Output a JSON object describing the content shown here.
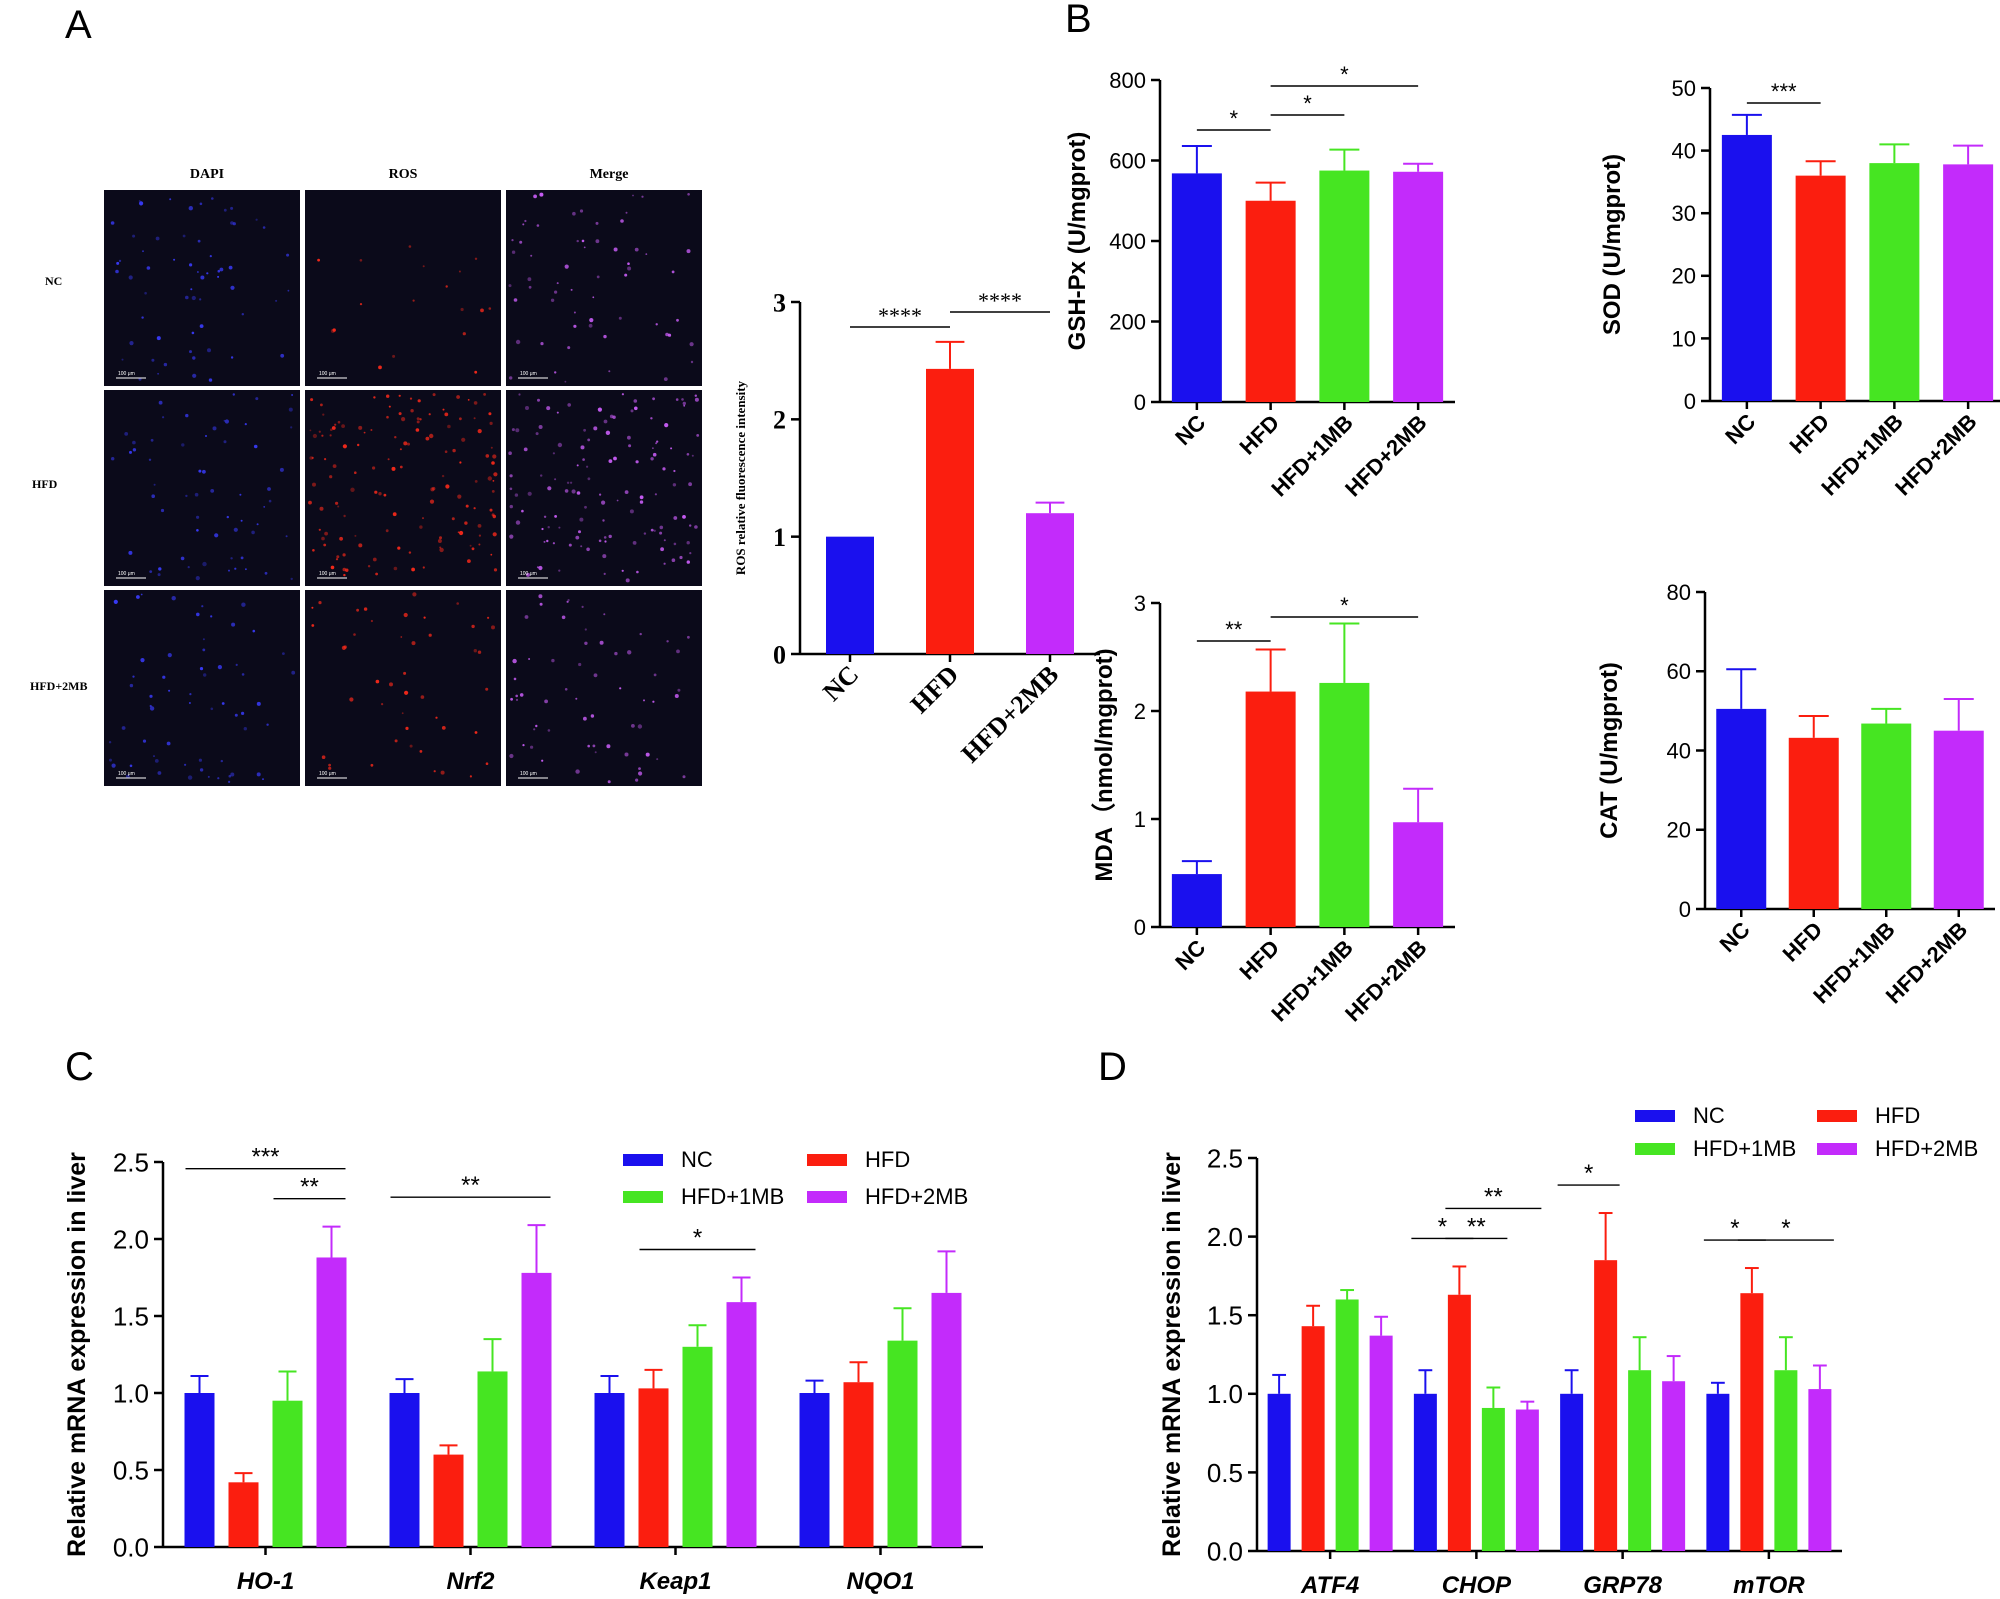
{
  "panel_labels": [
    "A",
    "B",
    "C",
    "D"
  ],
  "colors": {
    "NC": "#1a10ee",
    "HFD": "#fb1e0f",
    "HFD+1MB": "#46e522",
    "HFD+2MB": "#c32bfb"
  },
  "microscopy": {
    "columns": [
      "DAPI",
      "ROS",
      "Merge"
    ],
    "rows": [
      "NC",
      "HFD",
      "HFD+2MB"
    ],
    "scale_bar_label": "100 μm"
  },
  "chart_data": [
    {
      "id": "ros",
      "type": "bar",
      "title": "",
      "ylabel": "ROS relative fluorescence intensity",
      "xlabel": "",
      "categories": [
        "NC",
        "HFD",
        "HFD+2MB"
      ],
      "values": [
        1.0,
        2.43,
        1.2
      ],
      "errors": [
        0,
        0.23,
        0.09
      ],
      "ylim": [
        0,
        3
      ],
      "yticks": [
        0,
        1,
        2,
        3
      ],
      "significance": [
        {
          "from": 0,
          "to": 1,
          "label": "****"
        },
        {
          "from": 1,
          "to": 2,
          "label": "****"
        }
      ]
    },
    {
      "id": "gshpx",
      "type": "bar",
      "ylabel": "GSH-Px (U/mgprot)",
      "categories": [
        "NC",
        "HFD",
        "HFD+1MB",
        "HFD+2MB"
      ],
      "values": [
        568,
        500,
        575,
        572
      ],
      "errors": [
        68,
        45,
        52,
        20
      ],
      "ylim": [
        0,
        800
      ],
      "yticks": [
        0,
        200,
        400,
        600,
        800
      ],
      "significance": [
        {
          "from": 0,
          "to": 1,
          "label": "*"
        },
        {
          "from": 1,
          "to": 2,
          "label": "*"
        },
        {
          "from": 1,
          "to": 3,
          "label": "*"
        }
      ]
    },
    {
      "id": "sod",
      "type": "bar",
      "ylabel": "SOD (U/mgprot)",
      "categories": [
        "NC",
        "HFD",
        "HFD+1MB",
        "HFD+2MB"
      ],
      "values": [
        42.5,
        36,
        38,
        37.8
      ],
      "errors": [
        3.2,
        2.3,
        3.0,
        3.0
      ],
      "ylim": [
        0,
        50
      ],
      "yticks": [
        0,
        10,
        20,
        30,
        40,
        50
      ],
      "significance": [
        {
          "from": 0,
          "to": 1,
          "label": "***"
        }
      ]
    },
    {
      "id": "mda",
      "type": "bar",
      "ylabel": "MDA（nmol/mgprot)",
      "categories": [
        "NC",
        "HFD",
        "HFD+1MB",
        "HFD+2MB"
      ],
      "values": [
        0.49,
        2.18,
        2.26,
        0.97
      ],
      "errors": [
        0.12,
        0.39,
        0.55,
        0.31
      ],
      "ylim": [
        0,
        3
      ],
      "yticks": [
        0,
        1,
        2,
        3
      ],
      "significance": [
        {
          "from": 0,
          "to": 1,
          "label": "**"
        },
        {
          "from": 1,
          "to": 3,
          "label": "*"
        }
      ]
    },
    {
      "id": "cat",
      "type": "bar",
      "ylabel": "CAT (U/mgprot)",
      "categories": [
        "NC",
        "HFD",
        "HFD+1MB",
        "HFD+2MB"
      ],
      "values": [
        50.5,
        43.2,
        46.8,
        45
      ],
      "errors": [
        10,
        5.5,
        3.7,
        8
      ],
      "ylim": [
        0,
        80
      ],
      "yticks": [
        0,
        20,
        40,
        60,
        80
      ],
      "significance": []
    },
    {
      "id": "genes_c",
      "type": "bar",
      "ylabel": "Relative mRNA expression in liver",
      "categories": [
        "HO-1",
        "Nrf2",
        "Keap1",
        "NQO1"
      ],
      "series": [
        {
          "name": "NC",
          "values": [
            1.0,
            1.0,
            1.0,
            1.0
          ],
          "errors": [
            0.11,
            0.09,
            0.11,
            0.08
          ]
        },
        {
          "name": "HFD",
          "values": [
            0.42,
            0.6,
            1.03,
            1.07
          ],
          "errors": [
            0.06,
            0.06,
            0.12,
            0.13
          ]
        },
        {
          "name": "HFD+1MB",
          "values": [
            0.95,
            1.14,
            1.3,
            1.34
          ],
          "errors": [
            0.19,
            0.21,
            0.14,
            0.21
          ]
        },
        {
          "name": "HFD+2MB",
          "values": [
            1.88,
            1.78,
            1.59,
            1.65
          ],
          "errors": [
            0.2,
            0.31,
            0.16,
            0.27
          ]
        }
      ],
      "legend": [
        "NC",
        "HFD",
        "HFD+1MB",
        "HFD+2MB"
      ],
      "ylim": [
        0,
        2.5
      ],
      "yticks": [
        "0.0",
        "0.5",
        "1.0",
        "1.5",
        "2.0",
        "2.5"
      ],
      "significance": [
        {
          "cat": 0,
          "from": 0,
          "to": 3,
          "label": "***",
          "level": 2
        },
        {
          "cat": 0,
          "from": 2,
          "to": 3,
          "label": "**",
          "level": 1
        },
        {
          "cat": 1,
          "from": 0,
          "to": 3,
          "label": "**",
          "level": 1
        },
        {
          "cat": 2,
          "from": 1,
          "to": 3,
          "label": "*",
          "level": 1
        }
      ]
    },
    {
      "id": "genes_d",
      "type": "bar",
      "ylabel": "Relative mRNA expression in liver",
      "categories": [
        "ATF4",
        "CHOP",
        "GRP78",
        "mTOR"
      ],
      "series": [
        {
          "name": "NC",
          "values": [
            1.0,
            1.0,
            1.0,
            1.0
          ],
          "errors": [
            0.12,
            0.15,
            0.15,
            0.07
          ]
        },
        {
          "name": "HFD",
          "values": [
            1.43,
            1.63,
            1.85,
            1.64
          ],
          "errors": [
            0.13,
            0.18,
            0.3,
            0.16
          ]
        },
        {
          "name": "HFD+1MB",
          "values": [
            1.6,
            0.91,
            1.15,
            1.15
          ],
          "errors": [
            0.06,
            0.13,
            0.21,
            0.21
          ]
        },
        {
          "name": "HFD+2MB",
          "values": [
            1.37,
            0.9,
            1.08,
            1.03
          ],
          "errors": [
            0.12,
            0.05,
            0.16,
            0.15
          ]
        }
      ],
      "legend": [
        "NC",
        "HFD",
        "HFD+1MB",
        "HFD+2MB"
      ],
      "ylim": [
        0,
        2.5
      ],
      "yticks": [
        "0.0",
        "0.5",
        "1.0",
        "1.5",
        "2.0",
        "2.5"
      ],
      "significance": [
        {
          "cat": 1,
          "from": 0,
          "to": 1,
          "label": "*",
          "level": 1
        },
        {
          "cat": 1,
          "from": 1,
          "to": 2,
          "label": "**",
          "level": 1
        },
        {
          "cat": 1,
          "from": 1,
          "to": 3,
          "label": "**",
          "level": 2
        },
        {
          "cat": 2,
          "from": 0,
          "to": 1,
          "label": "*",
          "level": 1
        },
        {
          "cat": 3,
          "from": 0,
          "to": 1,
          "label": "*",
          "level": 1
        },
        {
          "cat": 3,
          "from": 1,
          "to": 3,
          "label": "*",
          "level": 1
        }
      ]
    }
  ]
}
